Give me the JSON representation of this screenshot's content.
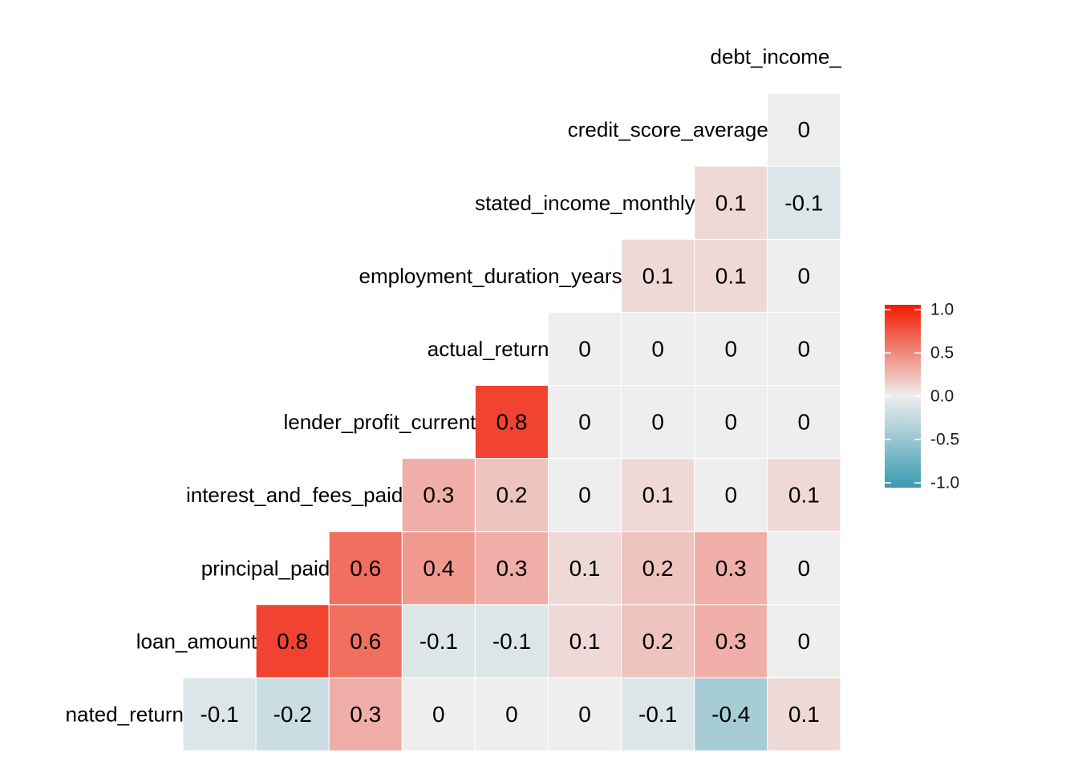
{
  "chart_data": {
    "type": "heatmap",
    "title": "",
    "variables": [
      "nated_return",
      "loan_amount",
      "principal_paid",
      "interest_and_fees_paid",
      "lender_profit_current",
      "actual_return",
      "employment_duration_years",
      "stated_income_monthly",
      "credit_score_average",
      "debt_income_"
    ],
    "rows": [
      {
        "label": "nated_return",
        "values": [
          -0.1,
          -0.2,
          0.3,
          0,
          0,
          0,
          -0.1,
          -0.4,
          0.1
        ]
      },
      {
        "label": "loan_amount",
        "values": [
          0.8,
          0.6,
          -0.1,
          -0.1,
          0.1,
          0.2,
          0.3,
          0
        ]
      },
      {
        "label": "principal_paid",
        "values": [
          0.6,
          0.4,
          0.3,
          0.1,
          0.2,
          0.3,
          0
        ]
      },
      {
        "label": "interest_and_fees_paid",
        "values": [
          0.3,
          0.2,
          0,
          0.1,
          0,
          0.1
        ]
      },
      {
        "label": "lender_profit_current",
        "values": [
          0.8,
          0,
          0,
          0,
          0
        ]
      },
      {
        "label": "actual_return",
        "values": [
          0,
          0,
          0,
          0
        ]
      },
      {
        "label": "employment_duration_years",
        "values": [
          0.1,
          0.1,
          0
        ]
      },
      {
        "label": "stated_income_monthly",
        "values": [
          0.1,
          -0.1
        ]
      },
      {
        "label": "credit_score_average",
        "values": [
          0
        ]
      },
      {
        "label": "debt_income_",
        "values": []
      }
    ],
    "color_scale": {
      "low": "#3a9ab2",
      "mid": "#eeeeee",
      "high": "#f21a00",
      "limits": [
        -1,
        1
      ]
    },
    "legend": {
      "position": "right",
      "tick_values": [
        1.0,
        0.5,
        0.0,
        -0.5,
        -1.0
      ],
      "tick_labels": [
        "1.0",
        "0.5",
        "0.0",
        "-0.5",
        "-1.0"
      ]
    }
  }
}
